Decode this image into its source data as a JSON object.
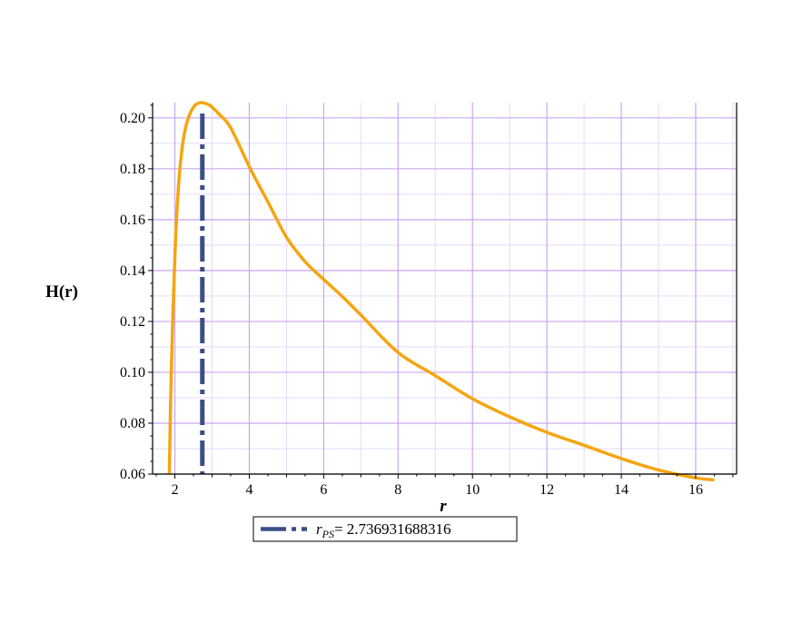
{
  "chart_data": {
    "type": "line",
    "title": "",
    "xlabel": "r",
    "ylabel": "H(r)",
    "xlim": [
      1.4,
      17.1
    ],
    "ylim": [
      0.06,
      0.206
    ],
    "x_ticks": [
      2,
      4,
      6,
      8,
      10,
      12,
      14,
      16
    ],
    "x_tick_labels": [
      "2",
      "4",
      "6",
      "8",
      "10",
      "12",
      "14",
      "16"
    ],
    "y_ticks": [
      0.06,
      0.08,
      0.1,
      0.12,
      0.14,
      0.16,
      0.18,
      0.2
    ],
    "y_tick_labels": [
      "0.06",
      "0.08",
      "0.10",
      "0.12",
      "0.14",
      "0.16",
      "0.18",
      "0.20"
    ],
    "grid": true,
    "legend_position": "bottom",
    "series": [
      {
        "name": "",
        "style": "solid",
        "color": "#f5a511",
        "x": [
          1.85,
          1.9,
          2.0,
          2.1,
          2.2,
          2.3,
          2.4,
          2.5,
          2.6,
          2.737,
          2.9,
          3.0,
          3.2,
          3.5,
          4.0,
          4.5,
          5.0,
          5.5,
          6.0,
          6.5,
          7.0,
          8.0,
          9.0,
          10.0,
          11.0,
          12.0,
          13.0,
          14.0,
          15.0,
          16.0,
          16.5
        ],
        "y": [
          0.06,
          0.099,
          0.146,
          0.174,
          0.189,
          0.197,
          0.2015,
          0.2042,
          0.2056,
          0.206,
          0.2052,
          0.2042,
          0.2013,
          0.1961,
          0.1808,
          0.167,
          0.1531,
          0.1435,
          0.1365,
          0.1298,
          0.1225,
          0.1078,
          0.0987,
          0.0896,
          0.0825,
          0.0764,
          0.0713,
          0.0661,
          0.0616,
          0.0585,
          0.0577
        ]
      }
    ],
    "vertical_line": {
      "x": 2.736931688316,
      "color": "#3a4f86",
      "style": "dash-dot",
      "legend_label": "r",
      "legend_subscript": "PS",
      "legend_value": "= 2.736931688316"
    }
  }
}
